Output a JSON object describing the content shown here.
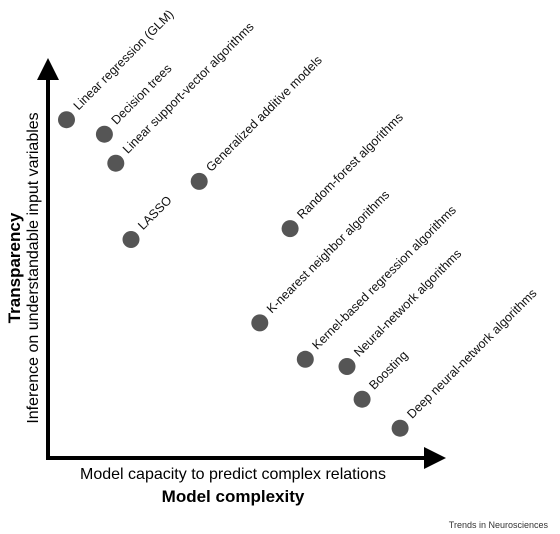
{
  "chart_data": {
    "type": "scatter",
    "xlabel": "Model complexity",
    "xlabel_sub": "Model capacity to predict complex relations",
    "ylabel": "Transparency",
    "ylabel_sub": "Inference on understandable input variables",
    "points": [
      {
        "label": "Linear regression (GLM)",
        "x": 0.07,
        "y": 0.91
      },
      {
        "label": "Decision trees",
        "x": 0.17,
        "y": 0.87
      },
      {
        "label": "Linear support-vector algorithms",
        "x": 0.2,
        "y": 0.79
      },
      {
        "label": "Generalized additive models",
        "x": 0.42,
        "y": 0.74
      },
      {
        "label": "LASSO",
        "x": 0.24,
        "y": 0.58
      },
      {
        "label": "Random-forest algorithms",
        "x": 0.66,
        "y": 0.61
      },
      {
        "label": "K-nearest neighbor algorithms",
        "x": 0.58,
        "y": 0.35
      },
      {
        "label": "Kernel-based regression algorithms",
        "x": 0.7,
        "y": 0.25
      },
      {
        "label": "Neural-network algorithms",
        "x": 0.81,
        "y": 0.23
      },
      {
        "label": "Boosting",
        "x": 0.85,
        "y": 0.14
      },
      {
        "label": "Deep neural-network algorithms",
        "x": 0.95,
        "y": 0.06
      }
    ]
  },
  "footer": "Trends in Neurosciences",
  "colors": {
    "marker": "#555555",
    "axis": "#000000"
  }
}
